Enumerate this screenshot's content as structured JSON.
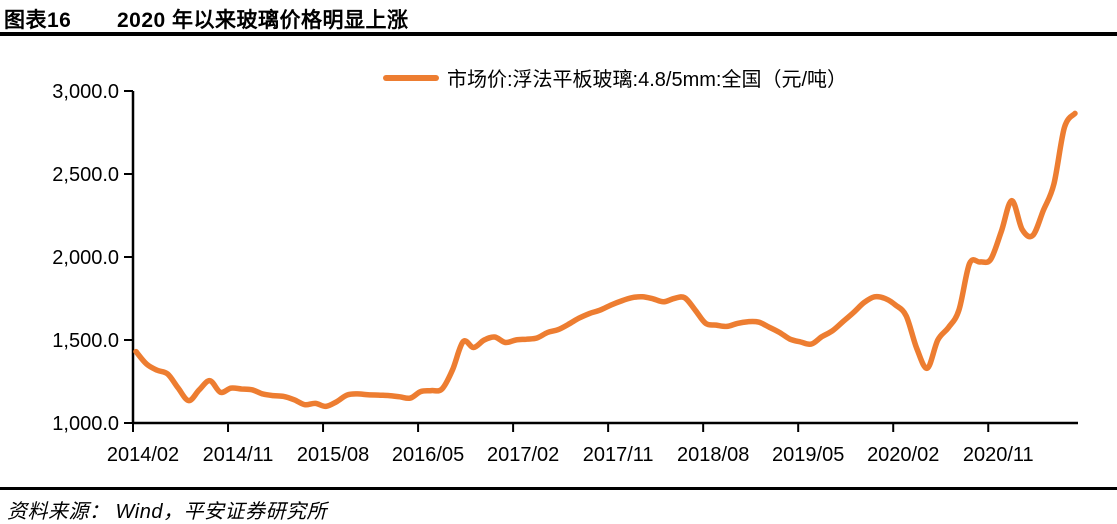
{
  "header": {
    "tag": "图表16",
    "title": "2020 年以来玻璃价格明显上涨"
  },
  "legend": {
    "label": "市场价:浮法平板玻璃:4.8/5mm:全国（元/吨）"
  },
  "footer": {
    "source": "资料来源： Wind，平安证券研究所"
  },
  "colors": {
    "series": "#ED7D31",
    "axis": "#000000",
    "text": "#000000"
  },
  "chart_data": {
    "type": "line",
    "title": "2020 年以来玻璃价格明显上涨",
    "legend_entries": [
      "市场价:浮法平板玻璃:4.8/5mm:全国（元/吨）"
    ],
    "legend_position": "top",
    "ylabel": "元/吨",
    "xlabel": "",
    "grid": false,
    "ylim": [
      1000,
      3000
    ],
    "y_ticks": {
      "values": [
        1000,
        1500,
        2000,
        2500,
        3000
      ],
      "labels": [
        "1,000.0",
        "1,500.0",
        "2,000.0",
        "2,500.0",
        "3,000.0"
      ]
    },
    "x_tick_labels": [
      "2014/02",
      "2014/11",
      "2015/08",
      "2016/05",
      "2017/02",
      "2017/11",
      "2018/08",
      "2019/05",
      "2020/02",
      "2020/11"
    ],
    "x_tick_month_step": 9,
    "x": [
      "2014/02",
      "2014/03",
      "2014/04",
      "2014/05",
      "2014/06",
      "2014/07",
      "2014/08",
      "2014/09",
      "2014/10",
      "2014/11",
      "2014/12",
      "2015/01",
      "2015/02",
      "2015/03",
      "2015/04",
      "2015/05",
      "2015/06",
      "2015/07",
      "2015/08",
      "2015/09",
      "2015/10",
      "2015/11",
      "2015/12",
      "2016/01",
      "2016/02",
      "2016/03",
      "2016/04",
      "2016/05",
      "2016/06",
      "2016/07",
      "2016/08",
      "2016/09",
      "2016/10",
      "2016/11",
      "2016/12",
      "2017/01",
      "2017/02",
      "2017/03",
      "2017/04",
      "2017/05",
      "2017/06",
      "2017/07",
      "2017/08",
      "2017/09",
      "2017/10",
      "2017/11",
      "2017/12",
      "2018/01",
      "2018/02",
      "2018/03",
      "2018/04",
      "2018/05",
      "2018/06",
      "2018/07",
      "2018/08",
      "2018/09",
      "2018/10",
      "2018/11",
      "2018/12",
      "2019/01",
      "2019/02",
      "2019/03",
      "2019/04",
      "2019/05",
      "2019/06",
      "2019/07",
      "2019/08",
      "2019/09",
      "2019/10",
      "2019/11",
      "2019/12",
      "2020/01",
      "2020/02",
      "2020/03",
      "2020/04",
      "2020/05",
      "2020/06",
      "2020/07",
      "2020/08",
      "2020/09",
      "2020/10",
      "2020/11",
      "2020/12",
      "2021/01",
      "2021/02",
      "2021/03",
      "2021/04",
      "2021/05",
      "2021/06",
      "2021/07"
    ],
    "values": [
      1430,
      1355,
      1318,
      1295,
      1210,
      1135,
      1200,
      1255,
      1185,
      1210,
      1205,
      1200,
      1175,
      1165,
      1160,
      1140,
      1110,
      1118,
      1100,
      1128,
      1168,
      1175,
      1170,
      1168,
      1165,
      1158,
      1150,
      1190,
      1195,
      1205,
      1320,
      1490,
      1455,
      1500,
      1518,
      1485,
      1500,
      1505,
      1512,
      1545,
      1562,
      1595,
      1632,
      1660,
      1680,
      1710,
      1735,
      1755,
      1760,
      1748,
      1730,
      1750,
      1755,
      1680,
      1600,
      1590,
      1582,
      1600,
      1610,
      1608,
      1578,
      1545,
      1505,
      1488,
      1475,
      1520,
      1555,
      1610,
      1665,
      1725,
      1760,
      1750,
      1710,
      1645,
      1450,
      1330,
      1500,
      1575,
      1680,
      1960,
      1970,
      1985,
      2150,
      2340,
      2165,
      2130,
      2280,
      2440,
      2780,
      2865
    ],
    "series_name": "市场价:浮法平板玻璃:4.8/5mm:全国（元/吨）"
  }
}
